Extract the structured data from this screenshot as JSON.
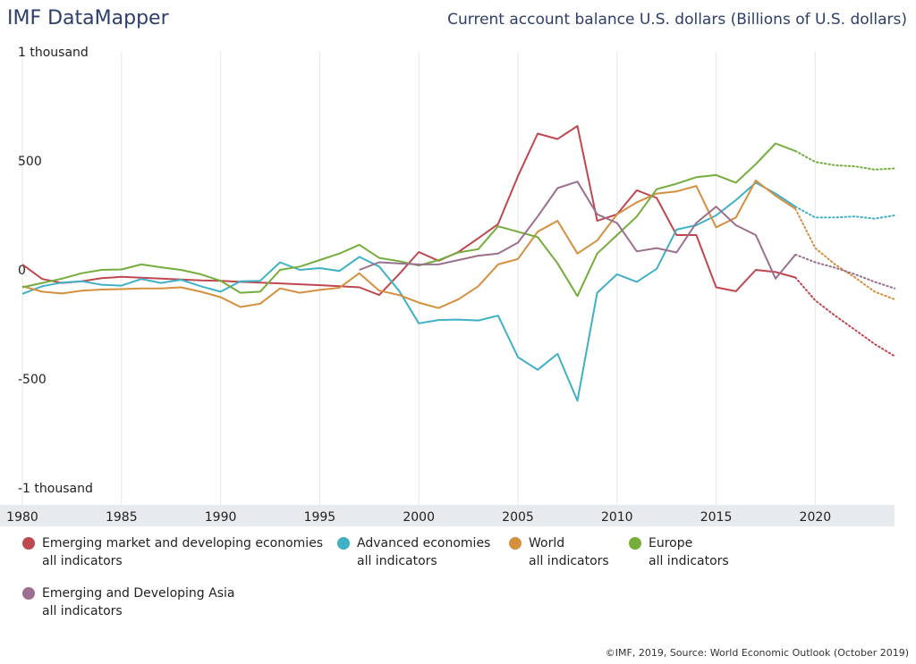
{
  "header": {
    "brand": "IMF DataMapper",
    "title": "Current account balance U.S. dollars (Billions of U.S. dollars)"
  },
  "footer": {
    "credit": "©IMF, 2019, Source: World Economic Outlook (October 2019)"
  },
  "chart_data": {
    "type": "line",
    "title": "Current account balance U.S. dollars (Billions of U.S. dollars)",
    "xlim": [
      1980,
      2024
    ],
    "ylim": [
      -1000,
      1000
    ],
    "grid": "vertical",
    "x_ticks": [
      1980,
      1985,
      1990,
      1995,
      2000,
      2005,
      2010,
      2015,
      2020
    ],
    "y_ticks": [
      {
        "value": 1000,
        "label": "1 thousand"
      },
      {
        "value": 500,
        "label": "500"
      },
      {
        "value": 0,
        "label": "0"
      },
      {
        "value": -500,
        "label": "-500"
      },
      {
        "value": -1000,
        "label": "-1 thousand"
      }
    ],
    "projection_start": 2019,
    "series": [
      {
        "name": "Emerging market and developing economies",
        "subtitle": "all indicators",
        "color": "#c0474f",
        "x": [
          1980,
          1981,
          1982,
          1983,
          1984,
          1985,
          1986,
          1987,
          1988,
          1989,
          1990,
          1991,
          1992,
          1993,
          1994,
          1995,
          1996,
          1997,
          1998,
          1999,
          2000,
          2001,
          2002,
          2003,
          2004,
          2005,
          2006,
          2007,
          2008,
          2009,
          2010,
          2011,
          2012,
          2013,
          2014,
          2015,
          2016,
          2017,
          2018,
          2019,
          2020,
          2021,
          2022,
          2023,
          2024
        ],
        "y": [
          25,
          -42,
          -60,
          -52,
          -38,
          -32,
          -36,
          -40,
          -44,
          -48,
          -50,
          -55,
          -58,
          -62,
          -66,
          -70,
          -75,
          -80,
          -115,
          -20,
          82,
          42,
          82,
          145,
          210,
          430,
          625,
          600,
          660,
          225,
          255,
          365,
          330,
          160,
          160,
          -80,
          -98,
          0,
          -10,
          -35,
          -140,
          -210,
          -275,
          -340,
          -395
        ]
      },
      {
        "name": "Advanced economies",
        "subtitle": "all indicators",
        "color": "#3fb0c6",
        "x": [
          1980,
          1981,
          1982,
          1983,
          1984,
          1985,
          1986,
          1987,
          1988,
          1989,
          1990,
          1991,
          1992,
          1993,
          1994,
          1995,
          1996,
          1997,
          1998,
          1999,
          2000,
          2001,
          2002,
          2003,
          2004,
          2005,
          2006,
          2007,
          2008,
          2009,
          2010,
          2011,
          2012,
          2013,
          2014,
          2015,
          2016,
          2017,
          2018,
          2019,
          2020,
          2021,
          2022,
          2023,
          2024
        ],
        "y": [
          -110,
          -75,
          -58,
          -52,
          -68,
          -72,
          -42,
          -60,
          -45,
          -75,
          -100,
          -52,
          -50,
          35,
          0,
          8,
          -5,
          60,
          15,
          -95,
          -245,
          -230,
          -228,
          -232,
          -210,
          -400,
          -458,
          -385,
          -600,
          -105,
          -20,
          -55,
          5,
          185,
          205,
          250,
          320,
          400,
          350,
          290,
          240,
          240,
          245,
          235,
          250
        ]
      },
      {
        "name": "World",
        "subtitle": "all indicators",
        "color": "#d48f3f",
        "x": [
          1980,
          1981,
          1982,
          1983,
          1984,
          1985,
          1986,
          1987,
          1988,
          1989,
          1990,
          1991,
          1992,
          1993,
          1994,
          1995,
          1996,
          1997,
          1998,
          1999,
          2000,
          2001,
          2002,
          2003,
          2004,
          2005,
          2006,
          2007,
          2008,
          2009,
          2010,
          2011,
          2012,
          2013,
          2014,
          2015,
          2016,
          2017,
          2018,
          2019,
          2020,
          2021,
          2022,
          2023,
          2024
        ],
        "y": [
          -75,
          -100,
          -108,
          -95,
          -90,
          -88,
          -85,
          -85,
          -80,
          -100,
          -125,
          -170,
          -155,
          -85,
          -105,
          -92,
          -82,
          -15,
          -95,
          -115,
          -150,
          -175,
          -135,
          -75,
          25,
          50,
          175,
          225,
          75,
          135,
          255,
          310,
          350,
          360,
          385,
          195,
          240,
          410,
          340,
          280,
          100,
          25,
          -35,
          -100,
          -135
        ]
      },
      {
        "name": "Europe",
        "subtitle": "all indicators",
        "color": "#74ad3c",
        "x": [
          1980,
          1981,
          1982,
          1983,
          1984,
          1985,
          1986,
          1987,
          1988,
          1989,
          1990,
          1991,
          1992,
          1993,
          1994,
          1995,
          1996,
          1997,
          1998,
          1999,
          2000,
          2001,
          2002,
          2003,
          2004,
          2005,
          2006,
          2007,
          2008,
          2009,
          2010,
          2011,
          2012,
          2013,
          2014,
          2015,
          2016,
          2017,
          2018,
          2019,
          2020,
          2021,
          2022,
          2023,
          2024
        ],
        "y": [
          -80,
          -60,
          -40,
          -15,
          0,
          2,
          25,
          12,
          0,
          -20,
          -50,
          -105,
          -100,
          0,
          15,
          45,
          75,
          115,
          55,
          40,
          20,
          45,
          80,
          95,
          200,
          175,
          150,
          30,
          -120,
          75,
          160,
          245,
          370,
          395,
          425,
          435,
          400,
          485,
          580,
          545,
          495,
          480,
          475,
          460,
          465
        ]
      },
      {
        "name": "Emerging and Developing Asia",
        "subtitle": "all indicators",
        "color": "#9b6f8d",
        "x": [
          1997,
          1998,
          1999,
          2000,
          2001,
          2002,
          2003,
          2004,
          2005,
          2006,
          2007,
          2008,
          2009,
          2010,
          2011,
          2012,
          2013,
          2014,
          2015,
          2016,
          2017,
          2018,
          2019,
          2020,
          2021,
          2022,
          2023,
          2024
        ],
        "y": [
          0,
          35,
          30,
          25,
          25,
          45,
          65,
          75,
          125,
          245,
          375,
          405,
          255,
          215,
          85,
          100,
          80,
          215,
          290,
          205,
          160,
          -40,
          70,
          35,
          10,
          -20,
          -55,
          -85
        ]
      }
    ]
  }
}
